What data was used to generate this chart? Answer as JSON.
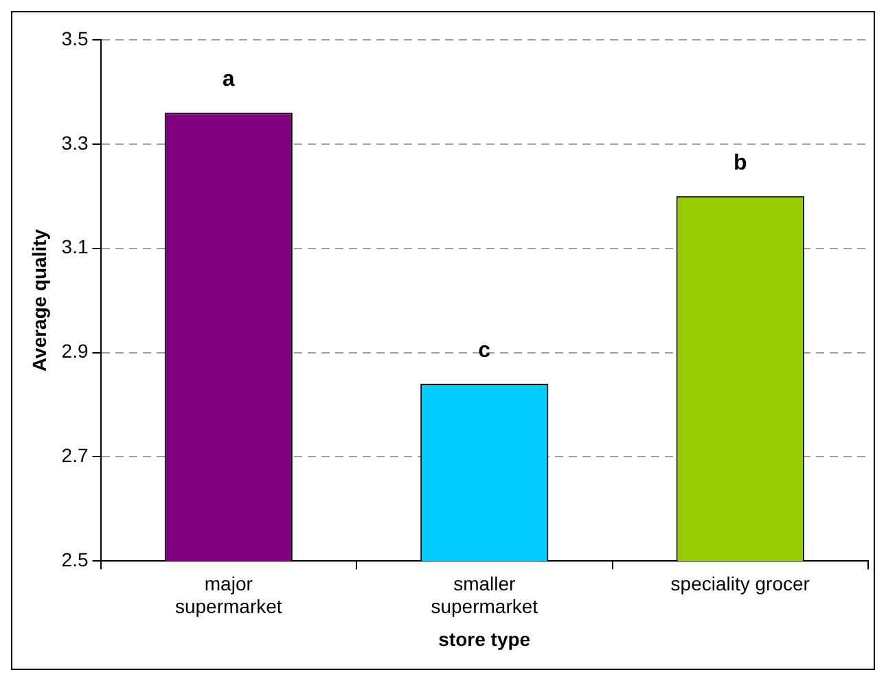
{
  "chart_data": {
    "type": "bar",
    "xlabel": "store type",
    "ylabel": "Average quality",
    "categories": [
      "major supermarket",
      "smaller supermarket",
      "speciality grocer"
    ],
    "values": [
      3.36,
      2.84,
      3.2
    ],
    "colors": [
      "#800080",
      "#00ccff",
      "#99cc00"
    ],
    "ylim": [
      2.5,
      3.5
    ],
    "yticks": [
      2.5,
      2.7,
      2.9,
      3.1,
      3.3,
      3.5
    ],
    "grid": "y",
    "annotations": [
      "a",
      "c",
      "b"
    ]
  }
}
